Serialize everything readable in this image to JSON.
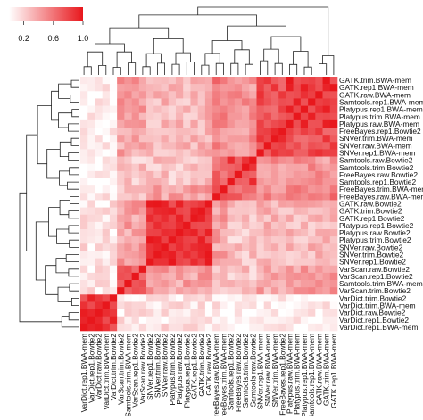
{
  "chart_data": {
    "type": "heatmap",
    "title": "",
    "xlabel": "",
    "ylabel": "",
    "color_scale": {
      "low_color": "#ffffff",
      "high_color": "#e8171c",
      "ticks": [
        "0.2",
        "0.6",
        "1.0"
      ],
      "range": [
        0,
        1
      ]
    },
    "row_labels": [
      "GATK.trim.BWA-mem",
      "GATK.rep1.BWA-mem",
      "GATK.raw.BWA-mem",
      "Samtools.rep1.BWA-mem",
      "Platypus.rep1.BWA-mem",
      "Platypus.trim.BWA-mem",
      "Platypus.raw.BWA-mem",
      "FreeBayes.rep1.Bowtie2",
      "SNVer.trim.BWA-mem",
      "SNVer.raw.BWA-mem",
      "SNVer.rep1.BWA-mem",
      "Samtools.raw.Bowtie2",
      "Samtools.trim.Bowtie2",
      "FreeBayes.raw.Bowtie2",
      "Samtools.rep1.Bowtie2",
      "FreeBayes.trim.BWA-mem",
      "FreeBayes.raw.BWA-mem",
      "GATK.raw.Bowtie2",
      "GATK.trim.Bowtie2",
      "GATK.rep1.Bowtie2",
      "Platypus.rep1.Bowtie2",
      "Platypus.raw.Bowtie2",
      "Platypus.trim.Bowtie2",
      "SNVer.raw.Bowtie2",
      "SNVer.trim.Bowtie2",
      "SNVer.rep1.Bowtie2",
      "VarScan.raw.Bowtie2",
      "VarScan.rep1.Bowtie2",
      "Samtools.trim.BWA-mem",
      "VarScan.trim.Bowtie2",
      "VarDict.trim.Bowtie2",
      "VarDict.trim.BWA-mem",
      "VarDict.raw.Bowtie2",
      "VarDict.rep1.Bowtie2",
      "VarDict.rep1.BWA-mem"
    ],
    "column_labels": [
      "VarDict.rep1.BWA-mem",
      "VarDict.rep1.Bowtie2",
      "VarDict.raw.Bowtie2",
      "VarDict.trim.BWA-mem",
      "VarDict.trim.Bowtie2",
      "VarScan.trim.Bowtie2",
      "Samtools.trim.BWA-mem",
      "VarScan.rep1.Bowtie2",
      "VarScan.raw.Bowtie2",
      "SNVer.rep1.Bowtie2",
      "SNVer.trim.Bowtie2",
      "SNVer.raw.Bowtie2",
      "Platypus.trim.Bowtie2",
      "Platypus.raw.Bowtie2",
      "Platypus.rep1.Bowtie2",
      "GATK.rep1.Bowtie2",
      "GATK.trim.Bowtie2",
      "GATK.raw.Bowtie2",
      "FreeBayes.raw.BWA-mem",
      "FreeBayes.trim.BWA-mem",
      "Samtools.rep1.Bowtie2",
      "FreeBayes.raw.Bowtie2",
      "Samtools.trim.Bowtie2",
      "Samtools.raw.Bowtie2",
      "SNVer.rep1.BWA-mem",
      "SNVer.raw.BWA-mem",
      "SNVer.trim.BWA-mem",
      "FreeBayes.rep1.Bowtie2",
      "Platypus.raw.BWA-mem",
      "Platypus.trim.BWA-mem",
      "Platypus.rep1.BWA-mem",
      "Samtools.rep1.BWA-mem",
      "GATK.raw.BWA-mem",
      "GATK.trim.BWA-mem",
      "GATK.rep1.BWA-mem"
    ],
    "row_groups": [
      0,
      0,
      0,
      0,
      0,
      0,
      0,
      1,
      1,
      1,
      1,
      2,
      2,
      2,
      2,
      3,
      3,
      4,
      4,
      4,
      4,
      4,
      4,
      4,
      4,
      4,
      5,
      5,
      5,
      5,
      6,
      6,
      6,
      6,
      6
    ],
    "column_groups": [
      6,
      6,
      6,
      6,
      6,
      5,
      5,
      5,
      5,
      4,
      4,
      4,
      4,
      4,
      4,
      4,
      4,
      4,
      3,
      3,
      2,
      2,
      2,
      2,
      1,
      1,
      1,
      1,
      0,
      0,
      0,
      0,
      0,
      0,
      0
    ],
    "block_similarity": [
      [
        0.88,
        0.75,
        0.45,
        0.55,
        0.3,
        0.42,
        0.06
      ],
      [
        0.75,
        0.82,
        0.45,
        0.5,
        0.32,
        0.38,
        0.06
      ],
      [
        0.45,
        0.45,
        0.8,
        0.62,
        0.25,
        0.25,
        0.05
      ],
      [
        0.55,
        0.5,
        0.62,
        0.85,
        0.4,
        0.3,
        0.08
      ],
      [
        0.3,
        0.32,
        0.25,
        0.4,
        0.88,
        0.4,
        0.12
      ],
      [
        0.42,
        0.38,
        0.25,
        0.3,
        0.4,
        0.72,
        0.1
      ],
      [
        0.06,
        0.06,
        0.05,
        0.08,
        0.12,
        0.1,
        0.85
      ]
    ],
    "diagonal_value": 1.0
  }
}
